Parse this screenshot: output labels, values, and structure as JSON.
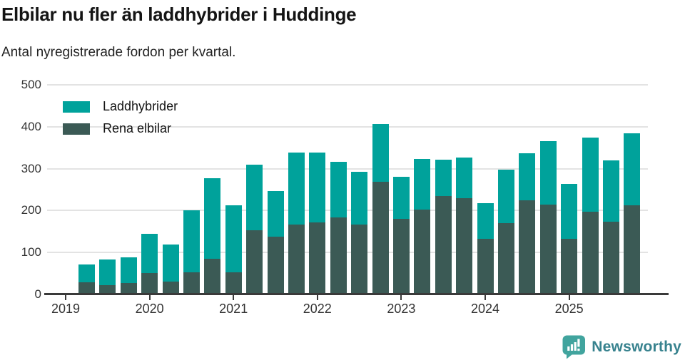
{
  "chart_data": {
    "type": "bar",
    "stacked": true,
    "title": "Elbilar nu fler än laddhybrider i Huddinge",
    "subtitle": "Antal nyregistrerade fordon per kvartal.",
    "categories": [
      "2019 Q2",
      "2019 Q3",
      "2019 Q4",
      "2020 Q1",
      "2020 Q2",
      "2020 Q3",
      "2020 Q4",
      "2021 Q1",
      "2021 Q2",
      "2021 Q3",
      "2021 Q4",
      "2022 Q1",
      "2022 Q2",
      "2022 Q3",
      "2022 Q4",
      "2023 Q1",
      "2023 Q2",
      "2023 Q3",
      "2023 Q4",
      "2024 Q1",
      "2024 Q2",
      "2024 Q3",
      "2024 Q4",
      "2025 Q1",
      "2025 Q2",
      "2025 Q3",
      "2025 Q4"
    ],
    "series": [
      {
        "name": "Laddhybrider",
        "color": "#00a29b",
        "values": [
          43,
          61,
          62,
          94,
          89,
          148,
          193,
          161,
          156,
          109,
          172,
          167,
          133,
          125,
          138,
          99,
          121,
          87,
          96,
          84,
          127,
          112,
          151,
          132,
          178,
          147,
          172
        ]
      },
      {
        "name": "Rena elbilar",
        "color": "#3b5a55",
        "values": [
          29,
          22,
          27,
          51,
          30,
          52,
          85,
          52,
          153,
          137,
          167,
          172,
          183,
          167,
          268,
          181,
          202,
          234,
          230,
          133,
          170,
          224,
          214,
          132,
          197,
          173,
          213
        ]
      }
    ],
    "stack_order_bottom_to_top": [
      "Rena elbilar",
      "Laddhybrider"
    ],
    "x_tick_labels": [
      "2019",
      "2020",
      "2021",
      "2022",
      "2023",
      "2024",
      "2025"
    ],
    "y_ticks": [
      0,
      100,
      200,
      300,
      400,
      500
    ],
    "ylim": [
      0,
      500
    ],
    "grid": "horizontal",
    "legend_position": "top-left"
  },
  "colors": {
    "laddhybrider": "#00a29b",
    "rena_elbilar": "#3b5a55",
    "gridline": "#e3e3e3",
    "axis": "#3a3a3a",
    "title_text": "#141414",
    "logo_bubble": "#41a49e",
    "logo_text": "#37828e"
  },
  "branding": {
    "logo_text": "Newsworthy"
  }
}
